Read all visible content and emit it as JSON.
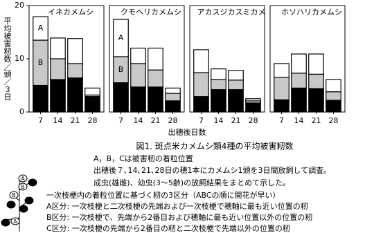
{
  "chart_data": [
    {
      "type": "bar",
      "stacked": true,
      "title": "イネカメムシ",
      "categories": [
        "7",
        "14",
        "21",
        "28"
      ],
      "series": [
        {
          "name": "C",
          "color": "#000000",
          "values": [
            5,
            6.1,
            6.4,
            2.9
          ]
        },
        {
          "name": "B",
          "color": "#c8c8c8",
          "values": [
            8.5,
            3.9,
            2.7,
            0.3
          ]
        },
        {
          "name": "A",
          "color": "#ffffff",
          "values": [
            4.4,
            3.9,
            4.7,
            1.3
          ]
        }
      ],
      "ylim": [
        0,
        20
      ],
      "yticks": [
        0,
        10,
        20
      ]
    },
    {
      "type": "bar",
      "stacked": true,
      "title": "クモヘリカメムシ",
      "categories": [
        "7",
        "14",
        "21",
        "28"
      ],
      "series": [
        {
          "name": "C",
          "color": "#000000",
          "values": [
            5.5,
            4.7,
            4.7,
            2.1
          ]
        },
        {
          "name": "B",
          "color": "#c8c8c8",
          "values": [
            4.9,
            4.4,
            3.2,
            1.4
          ]
        },
        {
          "name": "A",
          "color": "#ffffff",
          "values": [
            7,
            2.9,
            4.1,
            1
          ]
        }
      ]
    },
    {
      "type": "bar",
      "stacked": true,
      "title": "アカスジカスミカメ",
      "categories": [
        "7",
        "14",
        "21",
        "28"
      ],
      "series": [
        {
          "name": "C",
          "color": "#000000",
          "values": [
            2.9,
            4.2,
            4.2,
            1.7
          ]
        },
        {
          "name": "B",
          "color": "#c8c8c8",
          "values": [
            4.5,
            1.9,
            1.8,
            0.4
          ]
        },
        {
          "name": "A",
          "color": "#ffffff",
          "values": [
            4.3,
            2,
            1.8,
            0.4
          ]
        }
      ]
    },
    {
      "type": "bar",
      "stacked": true,
      "title": "ホソハリカメムシ",
      "categories": [
        "7",
        "14",
        "21",
        "28"
      ],
      "series": [
        {
          "name": "C",
          "color": "#000000",
          "values": [
            2.3,
            4.5,
            4.4,
            2.2
          ]
        },
        {
          "name": "B",
          "color": "#c8c8c8",
          "values": [
            4.2,
            2.8,
            2.7,
            1.6
          ]
        },
        {
          "name": "A",
          "color": "#ffffff",
          "values": [
            2.6,
            3.6,
            3.8,
            2.3
          ]
        }
      ]
    }
  ],
  "figure": {
    "y_label": "平均被害籾数／頭／３日",
    "x_label": "出穂後日数",
    "caption": "図1. 斑点米カメムシ類4種の平均被害籾数",
    "notes": [
      "A，B，Cは被害籾の着粒位置",
      "出穂後７､14､21､28日の穂1本にカメムシ1頭を3日間放飼して調査。",
      "成虫(雄雌)、幼虫(3～5齢)の放飼結果をまとめて示した。"
    ],
    "classes": [
      "一次枝梗内の着粒位置に基づく籾の3区分（ABCの順に開花が早い）",
      "A区分: 一次枝梗と二次枝梗の先端および一次枝梗で穂軸に最も近い位置の籾",
      "B区分: 一次枝梗で、先端から2番目および穂軸に最も近い位置以外の位置の籾",
      "C区分: 一次枝梗の先端から2番目の籾と二次枝梗で先端以外の位置の籾"
    ]
  }
}
